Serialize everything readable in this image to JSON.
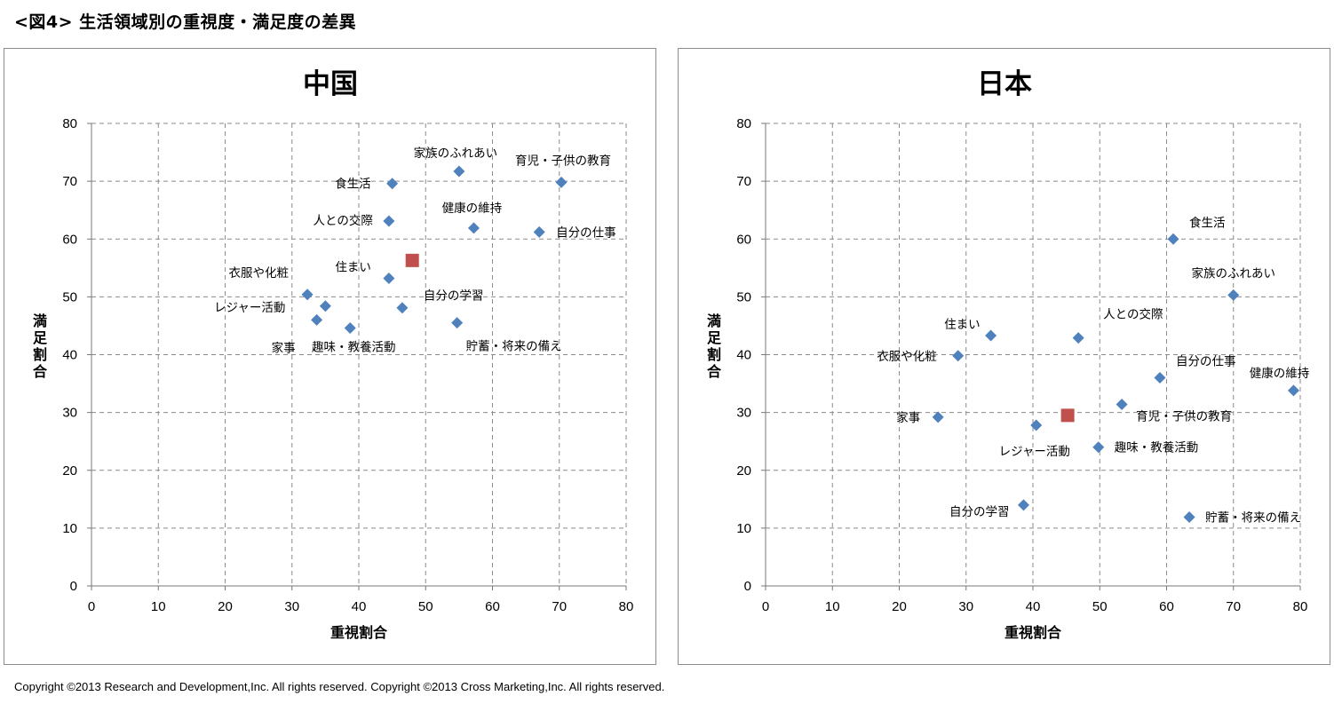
{
  "page": {
    "figure_title": "<図4> 生活領域別の重視度・満足度の差異",
    "copyright": "Copyright ©2013 Research and Development,Inc. All rights reserved. Copyright ©2013 Cross Marketing,Inc. All rights reserved."
  },
  "colors": {
    "series": "#4f81bd",
    "average": "#c0504d",
    "grid": "#8a8a8a"
  },
  "chart_data": [
    {
      "type": "scatter",
      "title": "中国",
      "xlabel": "重視割合",
      "ylabel": "満足割合",
      "xlim": [
        0,
        80
      ],
      "ylim": [
        0,
        80
      ],
      "xticks": [
        0,
        10,
        20,
        30,
        40,
        50,
        60,
        70,
        80
      ],
      "yticks": [
        0,
        10,
        20,
        30,
        40,
        50,
        60,
        70,
        80
      ],
      "grid": true,
      "points": [
        {
          "label": "家族のふれあい",
          "x": 55,
          "y": 71.7
        },
        {
          "label": "育児・子供の教育",
          "x": 70.3,
          "y": 69.8
        },
        {
          "label": "食生活",
          "x": 45,
          "y": 69.6
        },
        {
          "label": "人との交際",
          "x": 44.5,
          "y": 63.1
        },
        {
          "label": "健康の維持",
          "x": 57.2,
          "y": 61.9
        },
        {
          "label": "自分の仕事",
          "x": 67,
          "y": 61.2
        },
        {
          "label": "住まい",
          "x": 44.5,
          "y": 53.2
        },
        {
          "label": "衣服や化粧",
          "x": 32.3,
          "y": 50.4
        },
        {
          "label": "レジャー活動",
          "x": 35,
          "y": 48.4
        },
        {
          "label": "自分の学習",
          "x": 46.5,
          "y": 48.1
        },
        {
          "label": "家事",
          "x": 33.7,
          "y": 46
        },
        {
          "label": "貯蓄・将来の備え",
          "x": 54.7,
          "y": 45.5
        },
        {
          "label": "趣味・教養活動",
          "x": 38.7,
          "y": 44.6
        }
      ],
      "average": {
        "x": 48,
        "y": 56.3
      }
    },
    {
      "type": "scatter",
      "title": "日本",
      "xlabel": "重視割合",
      "ylabel": "満足割合",
      "xlim": [
        0,
        80
      ],
      "ylim": [
        0,
        80
      ],
      "xticks": [
        0,
        10,
        20,
        30,
        40,
        50,
        60,
        70,
        80
      ],
      "yticks": [
        0,
        10,
        20,
        30,
        40,
        50,
        60,
        70,
        80
      ],
      "grid": true,
      "points": [
        {
          "label": "食生活",
          "x": 61,
          "y": 60
        },
        {
          "label": "家族のふれあい",
          "x": 70,
          "y": 50.3
        },
        {
          "label": "住まい",
          "x": 33.7,
          "y": 43.3
        },
        {
          "label": "人との交際",
          "x": 46.8,
          "y": 42.9
        },
        {
          "label": "衣服や化粧",
          "x": 28.8,
          "y": 39.8
        },
        {
          "label": "自分の仕事",
          "x": 59,
          "y": 36
        },
        {
          "label": "健康の維持",
          "x": 79,
          "y": 33.8
        },
        {
          "label": "育児・子供の教育",
          "x": 53.3,
          "y": 31.4
        },
        {
          "label": "家事",
          "x": 25.8,
          "y": 29.2
        },
        {
          "label": "レジャー活動",
          "x": 40.5,
          "y": 27.8
        },
        {
          "label": "趣味・教養活動",
          "x": 49.8,
          "y": 24
        },
        {
          "label": "自分の学習",
          "x": 38.6,
          "y": 14
        },
        {
          "label": "貯蓄・将来の備え",
          "x": 63.4,
          "y": 11.9
        }
      ],
      "average": {
        "x": 45.2,
        "y": 29.5
      }
    }
  ]
}
